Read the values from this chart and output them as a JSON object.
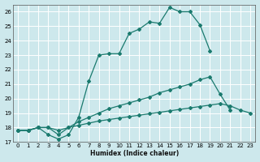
{
  "xlabel": "Humidex (Indice chaleur)",
  "bg_color": "#cde8ec",
  "grid_color": "#ffffff",
  "line_color": "#1a7a6e",
  "xlim": [
    -0.5,
    23.5
  ],
  "ylim": [
    17,
    26.5
  ],
  "yticks": [
    17,
    18,
    19,
    20,
    21,
    22,
    23,
    24,
    25,
    26
  ],
  "xticks": [
    0,
    1,
    2,
    3,
    4,
    5,
    6,
    7,
    8,
    9,
    10,
    11,
    12,
    13,
    14,
    15,
    16,
    17,
    18,
    19,
    20,
    21,
    22,
    23
  ],
  "curves": [
    {
      "x": [
        0,
        1,
        2,
        3,
        4,
        5,
        6,
        7,
        8,
        9,
        10,
        11,
        12,
        13,
        14,
        15,
        16,
        17,
        18,
        19
      ],
      "y": [
        17.8,
        17.8,
        18.0,
        17.5,
        17.2,
        17.5,
        18.7,
        21.2,
        23.0,
        23.1,
        23.1,
        24.5,
        24.8,
        25.3,
        25.2,
        26.3,
        26.0,
        26.0,
        25.1,
        23.3
      ]
    },
    {
      "x": [
        0,
        1,
        2,
        3,
        4,
        5,
        6,
        7,
        8,
        9,
        10,
        11,
        12,
        13,
        14,
        15,
        16,
        17,
        18,
        19,
        20,
        21
      ],
      "y": [
        17.8,
        17.8,
        18.0,
        18.0,
        17.5,
        18.0,
        18.4,
        18.7,
        19.0,
        19.3,
        19.5,
        19.7,
        19.9,
        20.1,
        20.4,
        20.6,
        20.8,
        21.0,
        21.3,
        21.5,
        20.3,
        19.2
      ]
    },
    {
      "x": [
        0,
        1,
        2,
        3,
        4,
        5,
        6,
        7,
        8,
        9,
        10,
        11,
        12,
        13,
        14,
        15,
        16,
        17,
        18,
        19,
        20,
        21,
        22,
        23
      ],
      "y": [
        17.8,
        17.8,
        18.0,
        18.0,
        17.8,
        18.0,
        18.15,
        18.3,
        18.45,
        18.55,
        18.65,
        18.75,
        18.85,
        18.95,
        19.05,
        19.15,
        19.25,
        19.35,
        19.45,
        19.55,
        19.65,
        19.5,
        19.2,
        19.0
      ]
    }
  ]
}
